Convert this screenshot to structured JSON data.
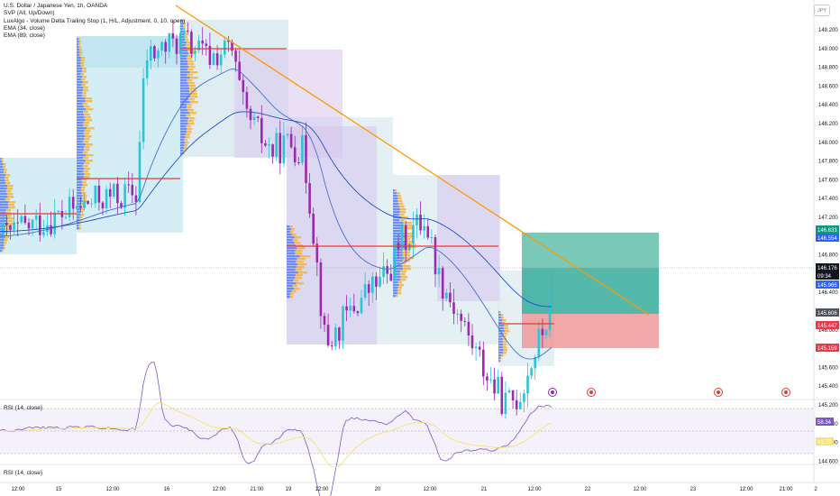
{
  "legend": {
    "symbol": "U.S. Dollar / Japanese Yen, 1h, OANDA",
    "svp": "SVP (All, Up/Down)",
    "luxalgo": "LuxAlgo - Volume Delta Trailing Stop (1, H/L, Adjustment, 0, 10, open)",
    "ema34": "EMA (34, close)",
    "ema89": "EMA (89, close)"
  },
  "currency": "JPY",
  "rsi1_title": "RSI (14, close)",
  "rsi2_title": "RSI (14, close)",
  "price_axis_ticks": [
    "149.200",
    "149.000",
    "148.800",
    "148.600",
    "148.400",
    "148.200",
    "148.000",
    "147.800",
    "147.600",
    "147.400",
    "147.200",
    "147.000",
    "146.800",
    "146.600",
    "146.400",
    "146.200",
    "146.000",
    "145.800",
    "145.600",
    "145.400",
    "145.200",
    "145.000",
    "144.800",
    "144.600"
  ],
  "price_tags": [
    {
      "text": "146.633",
      "color": "#089981"
    },
    {
      "text": "146.554",
      "color": "#2962ff"
    },
    {
      "text": "146.176",
      "color": "#131722"
    },
    {
      "text": "09:34",
      "color": "#131722"
    },
    {
      "text": "145.965",
      "color": "#2962ff"
    },
    {
      "text": "145.606",
      "color": "#50535e"
    },
    {
      "text": "145.447",
      "color": "#f23645"
    },
    {
      "text": "145.159",
      "color": "#f23645"
    }
  ],
  "rsi_tags": [
    {
      "text": "58.34",
      "color": "#7e57c2"
    },
    {
      "text": "41.73",
      "color": "#f5e47a"
    }
  ],
  "time_axis": [
    "12:00",
    "15",
    "12:00",
    "16",
    "12:00",
    "21:00",
    "19",
    "12:00",
    "20",
    "12:00",
    "21",
    "12:00",
    "22",
    "12:00",
    "23",
    "12:00",
    "21:00",
    "2"
  ],
  "event_icons": [
    "lightning-icon",
    "us-flag-icon",
    "alert-icon",
    "us-flag-icon"
  ],
  "colors": {
    "bull": "#26c6da",
    "bear": "#9c27b0",
    "trend": "#ff9800",
    "ema": "#3f6fd8",
    "red_level": "#e53935",
    "tp": "#4db6a0",
    "sl": "#ef9a9a"
  }
}
